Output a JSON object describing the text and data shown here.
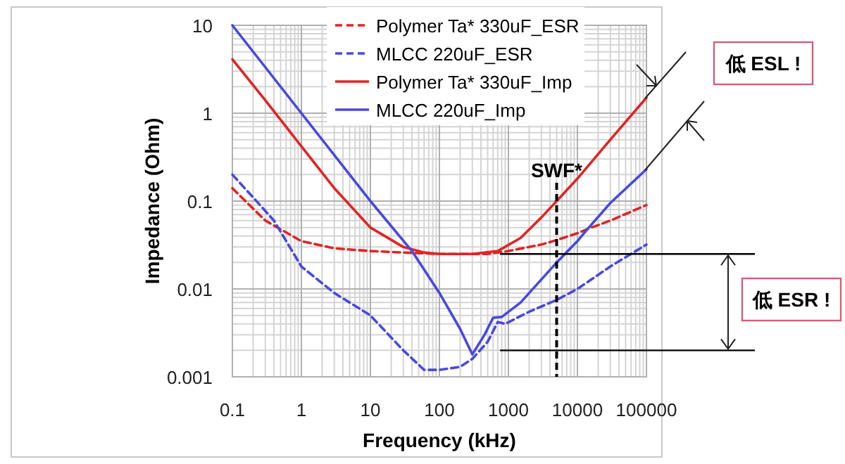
{
  "chart_data": {
    "type": "line",
    "xlabel": "Frequency (kHz)",
    "ylabel": "Impedance (Ohm)",
    "log": "xy",
    "grid": true,
    "legend": "top",
    "xlim": [
      0.1,
      100000
    ],
    "xticks": [
      0.1,
      1,
      10,
      100,
      1000,
      10000,
      100000
    ],
    "ylim": [
      0.001,
      10
    ],
    "yticks": [
      0.001,
      0.01,
      0.1,
      1,
      10
    ],
    "series": [
      {
        "name": "Polymer Ta* 330uF_ESR",
        "color": "#e02424",
        "line_style": "dashed",
        "x": [
          0.1,
          0.3,
          1,
          3,
          10,
          30,
          100,
          500,
          1000,
          3000,
          5000,
          10000,
          14000,
          30000,
          100000
        ],
        "values": [
          0.14,
          0.06,
          0.035,
          0.029,
          0.027,
          0.026,
          0.025,
          0.025,
          0.027,
          0.032,
          0.036,
          0.043,
          0.048,
          0.06,
          0.09
        ]
      },
      {
        "name": "MLCC 220uF_ESR",
        "color": "#4848e0",
        "line_style": "dashed",
        "x": [
          0.1,
          0.2,
          0.4,
          1,
          3,
          10,
          30,
          60,
          100,
          200,
          300,
          500,
          700,
          900,
          2000,
          5000,
          10000,
          30000,
          100000
        ],
        "values": [
          0.2,
          0.11,
          0.06,
          0.018,
          0.009,
          0.005,
          0.002,
          0.0012,
          0.0012,
          0.0013,
          0.0016,
          0.0025,
          0.0042,
          0.004,
          0.0055,
          0.0075,
          0.01,
          0.018,
          0.032
        ]
      },
      {
        "name": "Polymer Ta* 330uF_Imp",
        "color": "#e02424",
        "line_style": "solid",
        "x": [
          0.1,
          0.3,
          1,
          3,
          10,
          30,
          60,
          100,
          300,
          700,
          1500,
          3000,
          5000,
          10000,
          30000,
          100000
        ],
        "values": [
          4.1,
          1.4,
          0.42,
          0.14,
          0.05,
          0.03,
          0.026,
          0.025,
          0.025,
          0.027,
          0.038,
          0.065,
          0.1,
          0.18,
          0.5,
          1.5
        ]
      },
      {
        "name": "MLCC 220uF_Imp",
        "color": "#4848e0",
        "line_style": "solid",
        "x": [
          0.1,
          1,
          10,
          40,
          100,
          200,
          300,
          450,
          600,
          800,
          1500,
          5000,
          10000,
          14000,
          30000,
          100000
        ],
        "values": [
          10,
          1,
          0.1,
          0.027,
          0.009,
          0.0035,
          0.0018,
          0.003,
          0.0047,
          0.0048,
          0.007,
          0.02,
          0.035,
          0.048,
          0.095,
          0.23
        ]
      }
    ],
    "ref_lines": [
      {
        "axis": "x",
        "value": 5000,
        "label": "SWF*",
        "line_style": "dashed",
        "color": "#000000"
      },
      {
        "axis": "y",
        "value": 0.025,
        "color": "#000000"
      },
      {
        "axis": "y",
        "value": 0.002,
        "color": "#000000"
      }
    ],
    "annotations": [
      "低 ESL !",
      "低 ESR !"
    ]
  }
}
